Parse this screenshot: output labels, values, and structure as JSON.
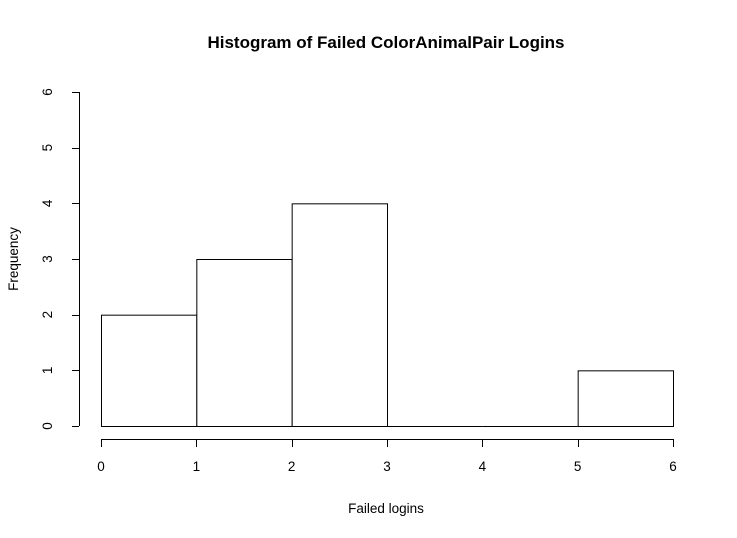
{
  "chart_data": {
    "type": "bar",
    "title": "Histogram of Failed ColorAnimalPair Logins",
    "xlabel": "Failed logins",
    "ylabel": "Frequency",
    "bins": [
      {
        "start": 0,
        "end": 1,
        "count": 2
      },
      {
        "start": 1,
        "end": 2,
        "count": 3
      },
      {
        "start": 2,
        "end": 3,
        "count": 4
      },
      {
        "start": 3,
        "end": 4,
        "count": 0
      },
      {
        "start": 4,
        "end": 5,
        "count": 0
      },
      {
        "start": 5,
        "end": 6,
        "count": 1
      }
    ],
    "xlim": [
      0,
      6
    ],
    "ylim": [
      0,
      6
    ],
    "x_ticks": [
      "0",
      "1",
      "2",
      "3",
      "4",
      "5",
      "6"
    ],
    "y_ticks": [
      "0",
      "1",
      "2",
      "3",
      "4",
      "5",
      "6"
    ],
    "grid": false,
    "colors": {
      "bar_fill": "#ffffff",
      "bar_stroke": "#000000"
    }
  }
}
